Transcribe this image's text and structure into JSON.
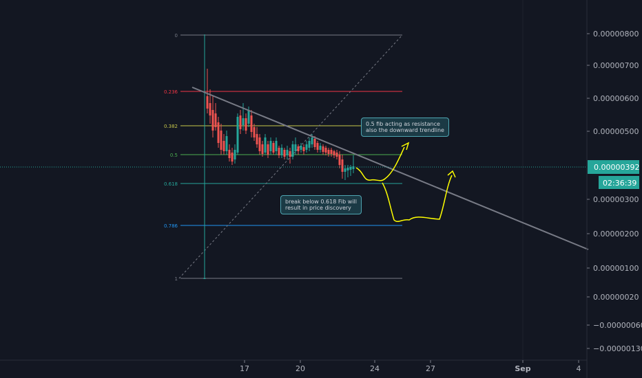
{
  "chart_data": {
    "type": "candlestick",
    "price_axis": {
      "ticks": [
        "0.00000800",
        "0.00000700",
        "0.00000600",
        "0.00000500",
        "0.00000400",
        "0.00000300",
        "0.00000200",
        "0.00000100",
        "0.00000020",
        "−0.00000060",
        "−0.00000130"
      ],
      "last_price": "0.00000392",
      "countdown": "02:36:39"
    },
    "time_axis": {
      "ticks": [
        "17",
        "20",
        "24",
        "27",
        "Sep",
        "4"
      ]
    },
    "fib_levels": [
      {
        "label": "0",
        "color": "#787b86"
      },
      {
        "label": "0.236",
        "color": "#f23645"
      },
      {
        "label": "0.382",
        "color": "#c8c84a"
      },
      {
        "label": "0.5",
        "color": "#4caf50"
      },
      {
        "label": "0.618",
        "color": "#26a69a"
      },
      {
        "label": "0.786",
        "color": "#2196f3"
      },
      {
        "label": "1",
        "color": "#787b86"
      }
    ],
    "annotations": [
      {
        "lines": [
          "0.5 fib acting as resistance",
          "also the downward trendline"
        ]
      },
      {
        "lines": [
          "break below 0.618 Fib will",
          "result in price discovery"
        ]
      }
    ],
    "colors": {
      "background": "#131722",
      "up": "#26a69a",
      "down": "#ef5350",
      "projection": "#ffff00",
      "trendline": "#787b86",
      "price_tag": "#26a69a"
    }
  }
}
